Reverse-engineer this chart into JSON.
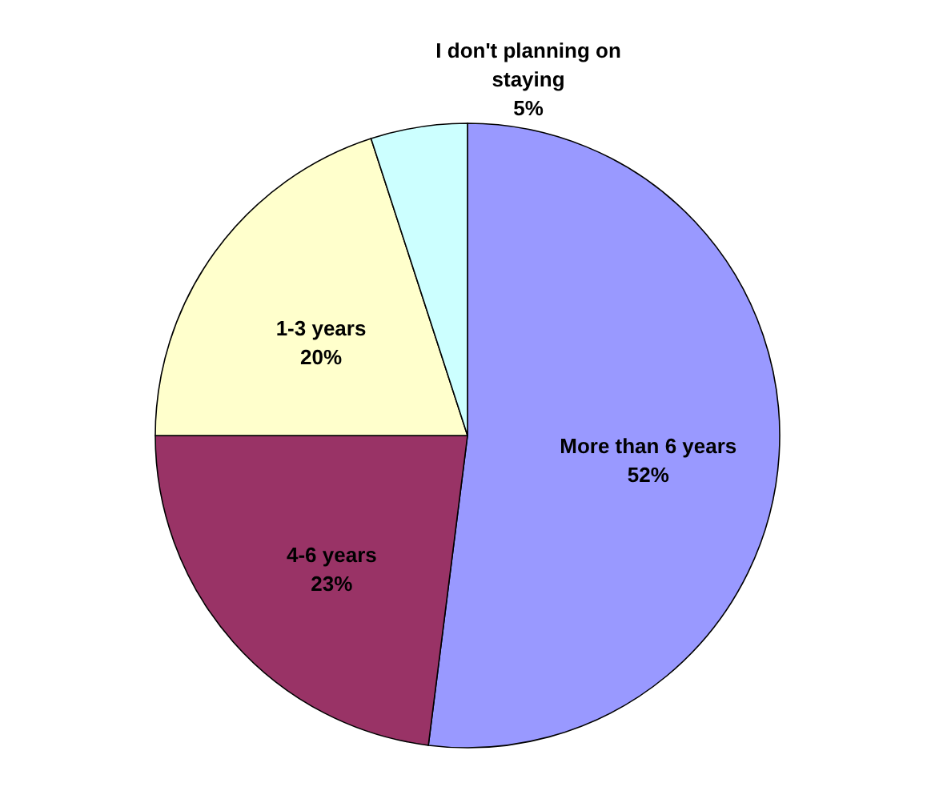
{
  "chart_data": {
    "type": "pie",
    "categories": [
      "More than 6 years",
      "4-6 years",
      "1-3 years",
      "I don't planning on staying"
    ],
    "values": [
      52,
      23,
      20,
      5
    ],
    "colors": [
      "#9999ff",
      "#993366",
      "#ffffcc",
      "#ccffff"
    ],
    "value_labels": [
      "52%",
      "23%",
      "20%",
      "5%"
    ],
    "legend": false
  }
}
